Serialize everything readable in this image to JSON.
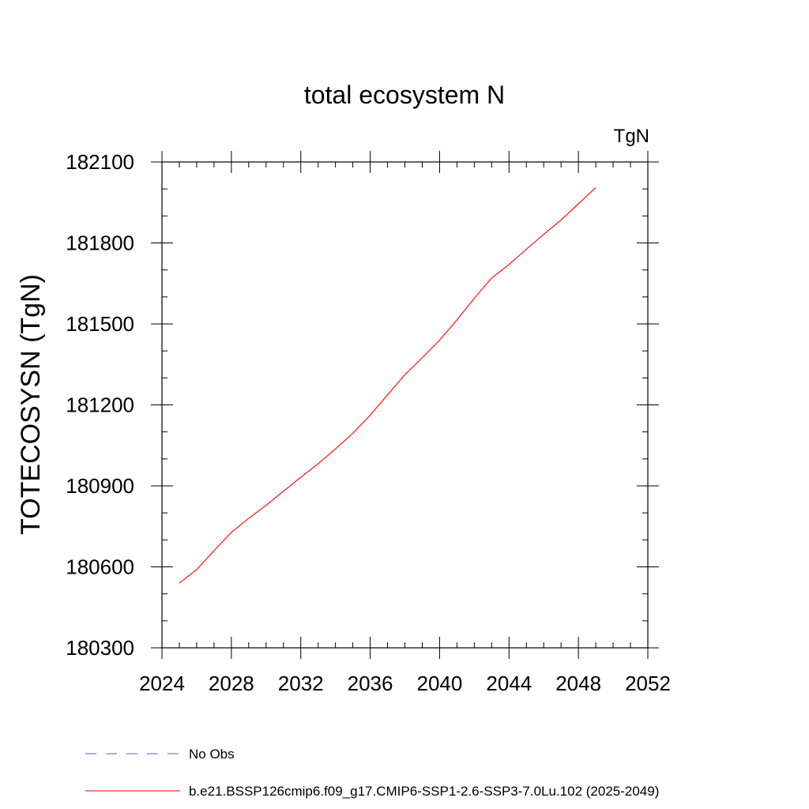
{
  "chart_data": {
    "type": "line",
    "title": "total ecosystem N",
    "unit_label": "TgN",
    "xlabel": "",
    "ylabel": "TOTECOSYSN  (TgN)",
    "xlim": [
      2024,
      2052
    ],
    "ylim": [
      180300,
      182100
    ],
    "x_ticks": [
      2024,
      2028,
      2032,
      2036,
      2040,
      2044,
      2048,
      2052
    ],
    "y_ticks": [
      180300,
      180600,
      180900,
      181200,
      181500,
      181800,
      182100
    ],
    "x_minor_step": 1,
    "y_minor_step": 100,
    "grid": false,
    "legend_position": "bottom-left",
    "series": [
      {
        "name": "No Obs",
        "color": "#6a5acd",
        "dash": "dashed",
        "x": [],
        "y": []
      },
      {
        "name": "b.e21.BSSP126cmip6.f09_g17.CMIP6-SSP1-2.6-SSP3-7.0Lu.102 (2025-2049)",
        "color": "#ff0000",
        "dash": "solid",
        "x": [
          2025,
          2026,
          2027,
          2028,
          2029,
          2030,
          2031,
          2032,
          2033,
          2034,
          2035,
          2036,
          2037,
          2038,
          2039,
          2040,
          2041,
          2042,
          2043,
          2044,
          2045,
          2046,
          2047,
          2048,
          2049
        ],
        "y": [
          180540,
          180590,
          180660,
          180728,
          180780,
          180828,
          180880,
          180932,
          180982,
          181037,
          181095,
          181162,
          181237,
          181312,
          181375,
          181440,
          181515,
          181595,
          181670,
          181720,
          181777,
          181832,
          181885,
          181945,
          182005
        ]
      }
    ]
  }
}
